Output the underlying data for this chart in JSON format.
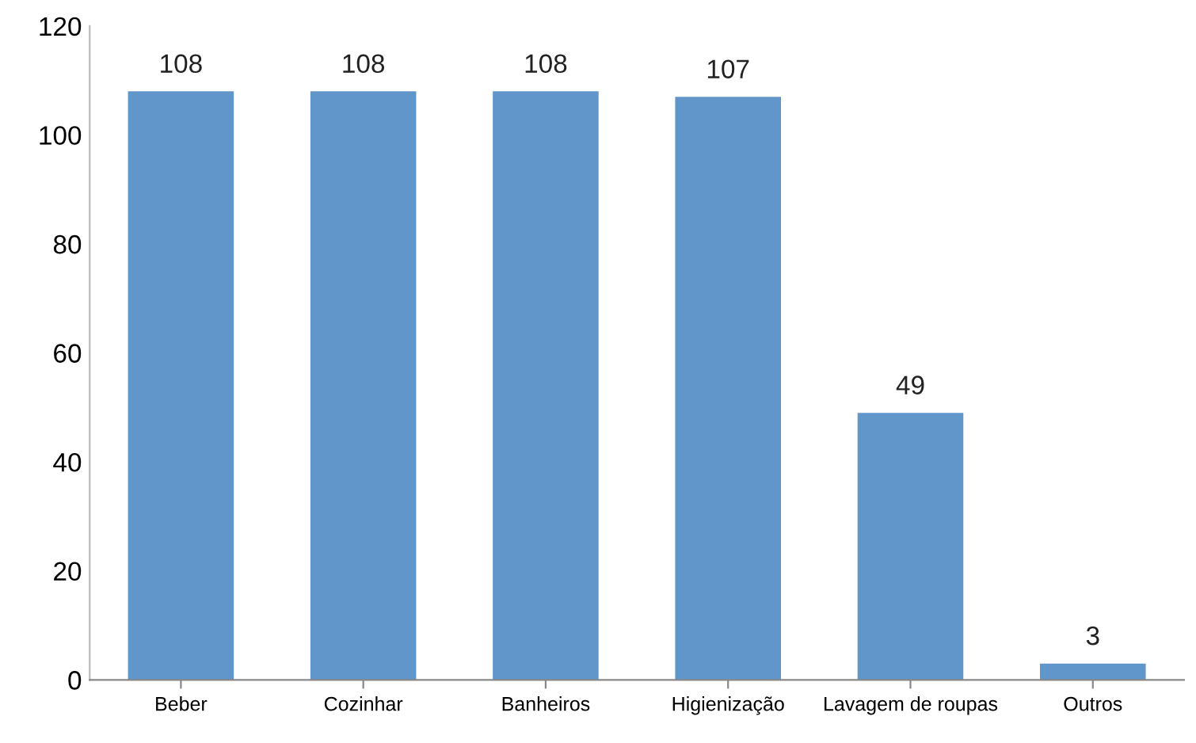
{
  "chart_data": {
    "type": "bar",
    "categories": [
      "Beber",
      "Cozinhar",
      "Banheiros",
      "Higienização",
      "Lavagem de roupas",
      "Outros"
    ],
    "values": [
      108,
      108,
      108,
      107,
      49,
      3
    ],
    "color": "#6196cb",
    "ylim": [
      0,
      120
    ],
    "yticks": [
      0,
      20,
      40,
      60,
      80,
      100,
      120
    ],
    "data_labels": true,
    "grid": false,
    "legend": false
  }
}
